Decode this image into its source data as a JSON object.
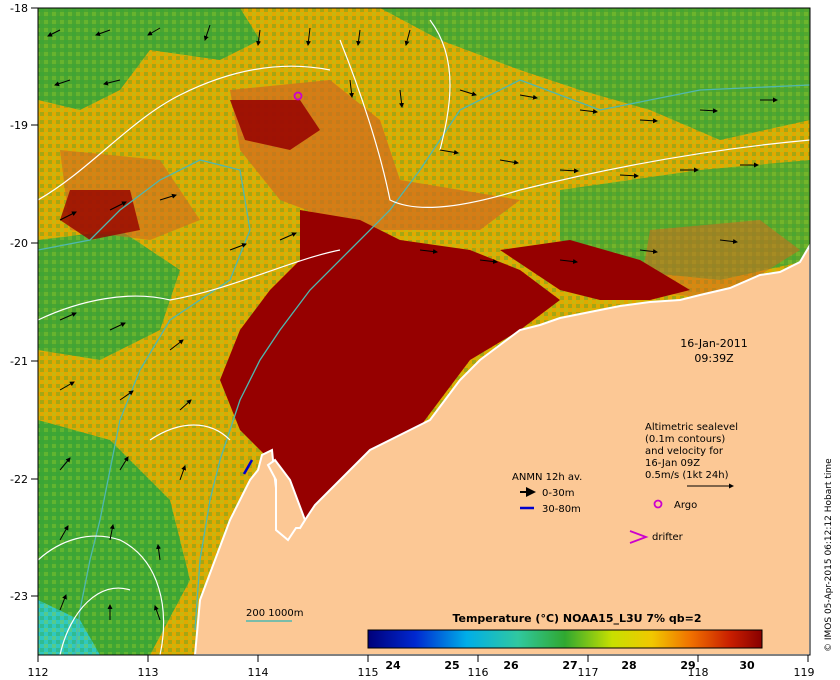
{
  "map": {
    "lon_ticks": [
      "112",
      "113",
      "114",
      "115",
      "116",
      "117",
      "118",
      "119"
    ],
    "lat_ticks": [
      "-18",
      "-19",
      "-20",
      "-21",
      "-22",
      "-23"
    ],
    "date": "16-Jan-2011",
    "time": "09:39Z",
    "sealevel_note": [
      "Altimetric sealevel",
      "(0.1m contours)",
      "and velocity for",
      "16-Jan 09Z"
    ],
    "velocity_scale": "0.5m/s (1kt 24h)",
    "anmn_title": "ANMN 12h av.",
    "anmn_shallow": "0-30m",
    "anmn_deep": "30-80m",
    "argo_label": "Argo",
    "drifter_label": "drifter",
    "isobath_label": "200  1000m",
    "colorbar_title": "Temperature (°C) NOAA15_L3U 7% qb=2",
    "colorbar_ticks": [
      "24",
      "25",
      "26",
      "27",
      "28",
      "29",
      "30"
    ],
    "credit": "© IMOS 05-Apr-2015 06:12:12 Hobart time"
  },
  "colors": {
    "land": "#fcc895",
    "hot": "#960000",
    "warm": "#d2691e",
    "mid": "#e2a800",
    "cool": "#2fa53a",
    "isobath": "#4fb8b0",
    "anmn_deep": "#0000cc",
    "argo": "#cc00cc"
  }
}
